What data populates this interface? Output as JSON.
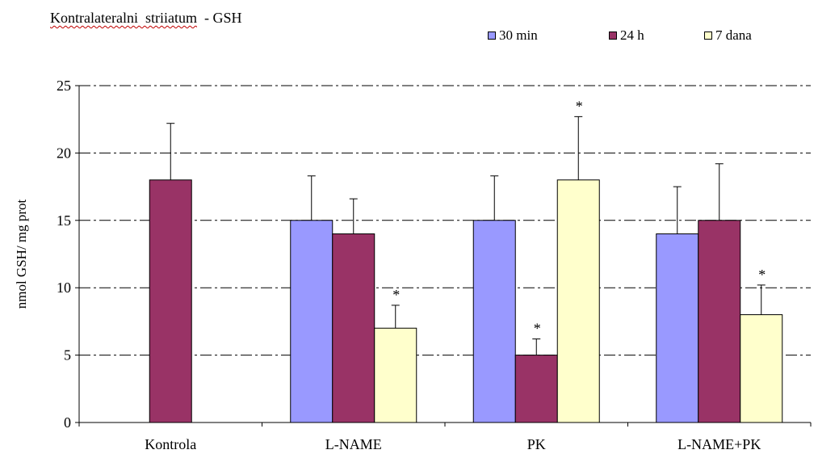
{
  "chart_data": {
    "type": "bar",
    "title": "Kontralateralni  striiatum",
    "title_suffix": "  - GSH",
    "ylabel": "nmol GSH/ mg prot",
    "xlabel": "",
    "ylim": [
      0,
      25
    ],
    "yticks": [
      0,
      5,
      10,
      15,
      20,
      25
    ],
    "ytick_labels": [
      "0",
      "5",
      "10",
      "15",
      "20",
      "25"
    ],
    "grid": "horizontal dash-dot",
    "legend_position": "top-right",
    "categories": [
      "Kontrola",
      "L-NAME",
      "PK",
      "L-NAME+PK"
    ],
    "series": [
      {
        "name": "30 min",
        "color": "#9999ff",
        "values": [
          null,
          15,
          15,
          14
        ],
        "errors": [
          null,
          3.3,
          3.3,
          3.5
        ],
        "significant": [
          false,
          false,
          false,
          false
        ]
      },
      {
        "name": "24 h",
        "color": "#993366",
        "values": [
          18,
          14,
          5,
          15
        ],
        "errors": [
          4.2,
          2.6,
          1.2,
          4.2
        ],
        "significant": [
          false,
          false,
          true,
          false
        ]
      },
      {
        "name": "7 dana",
        "color": "#ffffcc",
        "values": [
          null,
          7,
          18,
          8
        ],
        "errors": [
          null,
          1.7,
          4.7,
          2.2
        ],
        "significant": [
          false,
          true,
          true,
          true
        ]
      }
    ],
    "annotation_mark": "*"
  }
}
